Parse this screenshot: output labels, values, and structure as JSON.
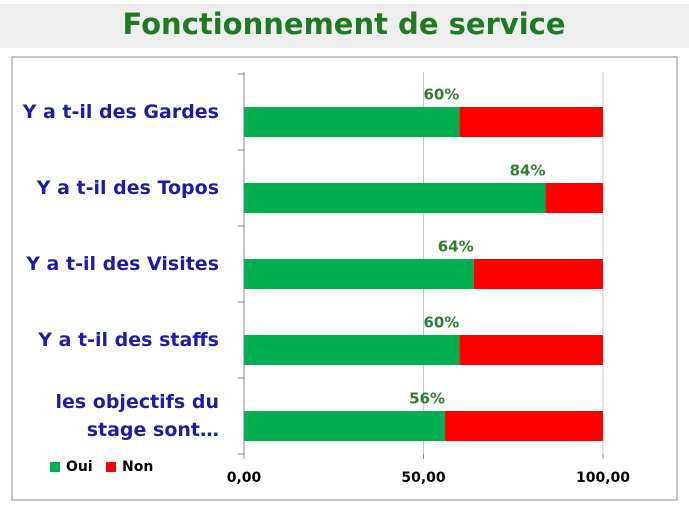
{
  "chart_data": {
    "type": "stacked-barh",
    "title": "Fonctionnement de service",
    "categories": [
      "Y a t-il des Gardes",
      "Y a t-il des Topos",
      "Y a t-il des Visites",
      "Y a t-il des staffs",
      "les objectifs du stage sont…"
    ],
    "series": [
      {
        "name": "Oui",
        "color": "#00b050",
        "values": [
          60,
          84,
          64,
          60,
          56
        ],
        "value_labels": [
          "60%",
          "84%",
          "64%",
          "60%",
          "56%"
        ]
      },
      {
        "name": "Non",
        "color": "#ff0000",
        "values": [
          40,
          16,
          36,
          40,
          44
        ]
      }
    ],
    "xlim": [
      0,
      100
    ],
    "xticks": [
      {
        "value": 0,
        "label": "0,00"
      },
      {
        "value": 50,
        "label": "50,00"
      },
      {
        "value": 100,
        "label": "100,00"
      }
    ],
    "grid": true,
    "legend": "bottom-left"
  }
}
